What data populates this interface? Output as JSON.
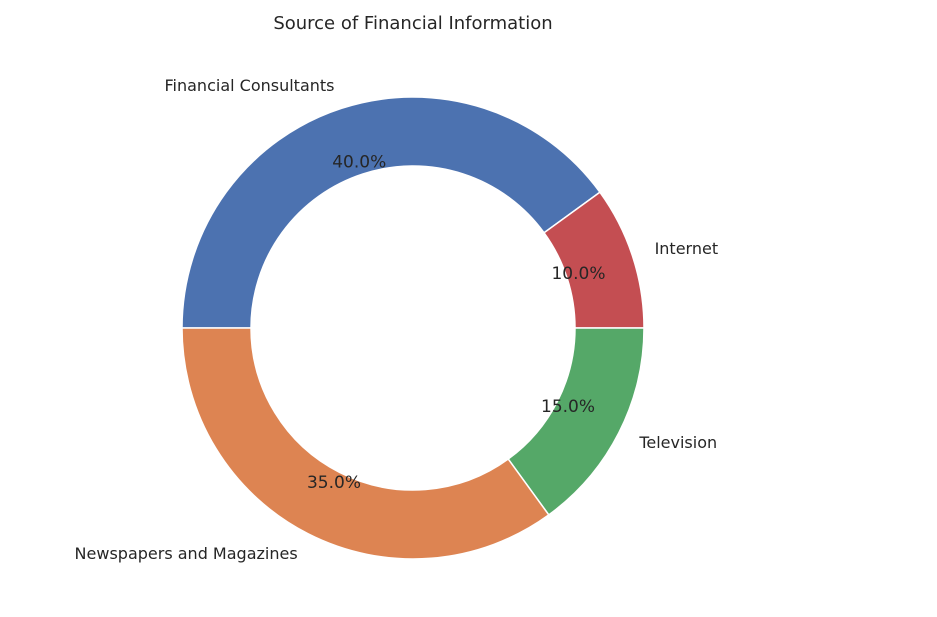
{
  "chart_data": {
    "type": "pie",
    "donut": true,
    "title": "Source of Financial Information",
    "start_angle_deg": 180,
    "direction": "clockwise",
    "slices": [
      {
        "label": "Financial Consultants",
        "value": 40.0,
        "pct_text": "40.0%",
        "color": "#4C72B0"
      },
      {
        "label": "Internet",
        "value": 10.0,
        "pct_text": "10.0%",
        "color": "#C44E52"
      },
      {
        "label": "Television",
        "value": 15.0,
        "pct_text": "15.0%",
        "color": "#55A868"
      },
      {
        "label": "Newspapers and Magazines",
        "value": 35.0,
        "pct_text": "35.0%",
        "color": "#DD8452"
      }
    ]
  }
}
